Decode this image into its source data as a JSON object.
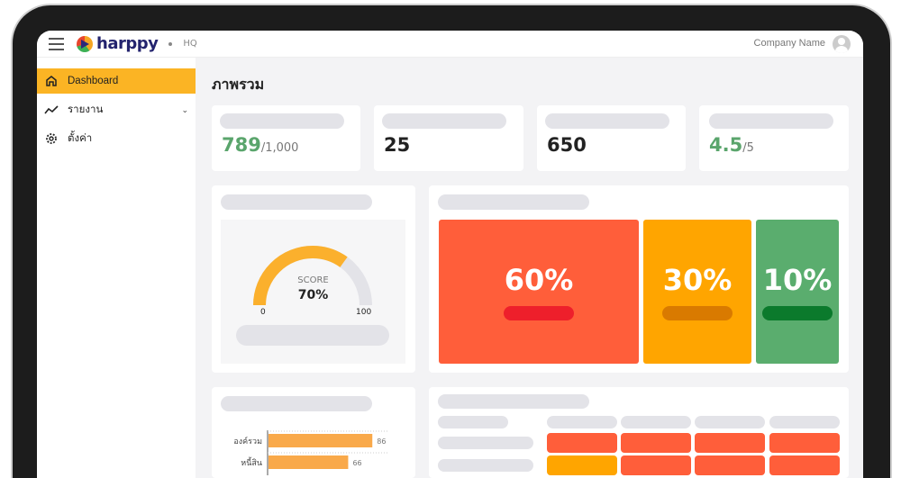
{
  "header": {
    "logo": "harppy",
    "branch": "HQ",
    "company": "Company Name"
  },
  "sidebar": {
    "items": [
      {
        "label": "Dashboard",
        "icon": "home-icon",
        "active": true
      },
      {
        "label": "รายงาน",
        "icon": "chart-line-icon",
        "expandable": true
      },
      {
        "label": "ตั้งค่า",
        "icon": "gear-icon"
      }
    ]
  },
  "page": {
    "title": "ภาพรวม"
  },
  "stats": [
    {
      "value": "789",
      "suffix": "/1,000",
      "color": "#5aa56c"
    },
    {
      "value": "25",
      "suffix": ""
    },
    {
      "value": "650",
      "suffix": ""
    },
    {
      "value": "4.5",
      "suffix": "/5",
      "color": "#5aa56c"
    }
  ],
  "gauge": {
    "label": "SCORE",
    "value_text": "70%",
    "value": 70,
    "min": "0",
    "max": "100",
    "color": "#fbb02d"
  },
  "distribution": [
    {
      "text": "60%",
      "value": 60,
      "color": "#ff5e3a",
      "pill": "#ee1f2b"
    },
    {
      "text": "30%",
      "value": 30,
      "color": "#ffa500",
      "pill": "#d97a00"
    },
    {
      "text": "10%",
      "value": 10,
      "color": "#5aad6e",
      "pill": "#0b7a2c"
    }
  ],
  "bar_chart": {
    "categories": [
      "องค์รวม",
      "หนี้สิน"
    ],
    "values": [
      86,
      66
    ],
    "value_labels": [
      "86",
      "66"
    ],
    "color": "#f9a94a"
  }
}
